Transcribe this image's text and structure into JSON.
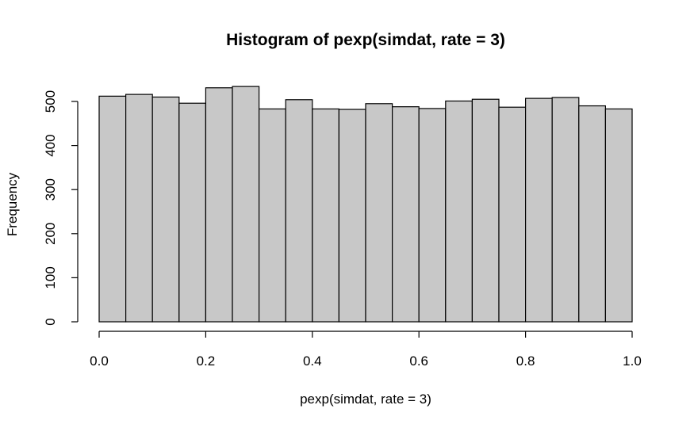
{
  "chart_data": {
    "type": "bar",
    "title": "Histogram of pexp(simdat, rate = 3)",
    "xlabel": "pexp(simdat, rate = 3)",
    "ylabel": "Frequency",
    "bin_edges": [
      0.0,
      0.05,
      0.1,
      0.15,
      0.2,
      0.25,
      0.3,
      0.35,
      0.4,
      0.45,
      0.5,
      0.55,
      0.6,
      0.65,
      0.7,
      0.75,
      0.8,
      0.85,
      0.9,
      0.95,
      1.0
    ],
    "values": [
      512,
      516,
      510,
      496,
      531,
      534,
      483,
      504,
      483,
      482,
      495,
      488,
      484,
      501,
      505,
      487,
      507,
      509,
      490,
      483
    ],
    "xlim": [
      0,
      1
    ],
    "ylim": [
      0,
      540
    ],
    "x_ticks": [
      "0.0",
      "0.2",
      "0.4",
      "0.6",
      "0.8",
      "1.0"
    ],
    "x_tick_values": [
      0.0,
      0.2,
      0.4,
      0.6,
      0.8,
      1.0
    ],
    "y_ticks": [
      "0",
      "100",
      "200",
      "300",
      "400",
      "500"
    ],
    "y_tick_values": [
      0,
      100,
      200,
      300,
      400,
      500
    ],
    "bar_fill": "#c8c8c8",
    "grid": false,
    "legend": "none"
  }
}
